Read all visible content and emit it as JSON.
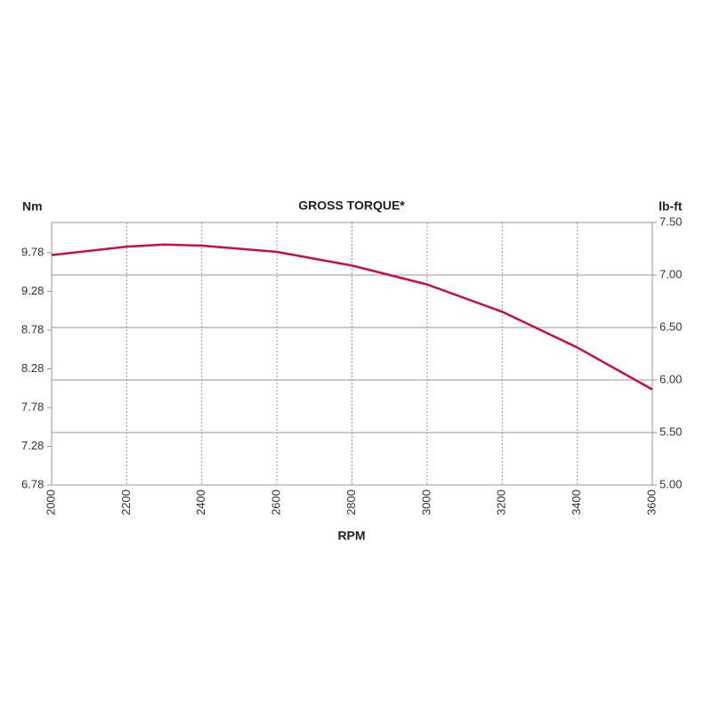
{
  "chart_data": {
    "type": "line",
    "title": "GROSS TORQUE*",
    "y_label": "Nm",
    "y2_label": "lb-ft",
    "x_label": "RPM",
    "x": [
      2000,
      2200,
      2300,
      2400,
      2600,
      2800,
      3000,
      3200,
      3400,
      3600
    ],
    "xlim": [
      2000,
      3600
    ],
    "xticks": [
      2000,
      2200,
      2400,
      2600,
      2800,
      3000,
      3200,
      3400,
      3600
    ],
    "ylim": [
      6.78,
      10.17
    ],
    "yticks": [
      6.78,
      7.28,
      7.78,
      8.28,
      8.78,
      9.28,
      9.78
    ],
    "y2lim": [
      5.0,
      7.5
    ],
    "y2ticks": [
      {
        "value": 5,
        "label": "5.00"
      },
      {
        "value": 5.5,
        "label": "5.50"
      },
      {
        "value": 6,
        "label": "6.00"
      },
      {
        "value": 6.5,
        "label": "6.50"
      },
      {
        "value": 7,
        "label": "7.00"
      },
      {
        "value": 7.5,
        "label": "7.50"
      }
    ],
    "grid": true,
    "series": [
      {
        "name": "Gross torque",
        "color": "#c8103e",
        "axis": "y2",
        "values": [
          7.19,
          7.27,
          7.29,
          7.28,
          7.22,
          7.09,
          6.91,
          6.65,
          6.31,
          5.91
        ]
      }
    ]
  }
}
